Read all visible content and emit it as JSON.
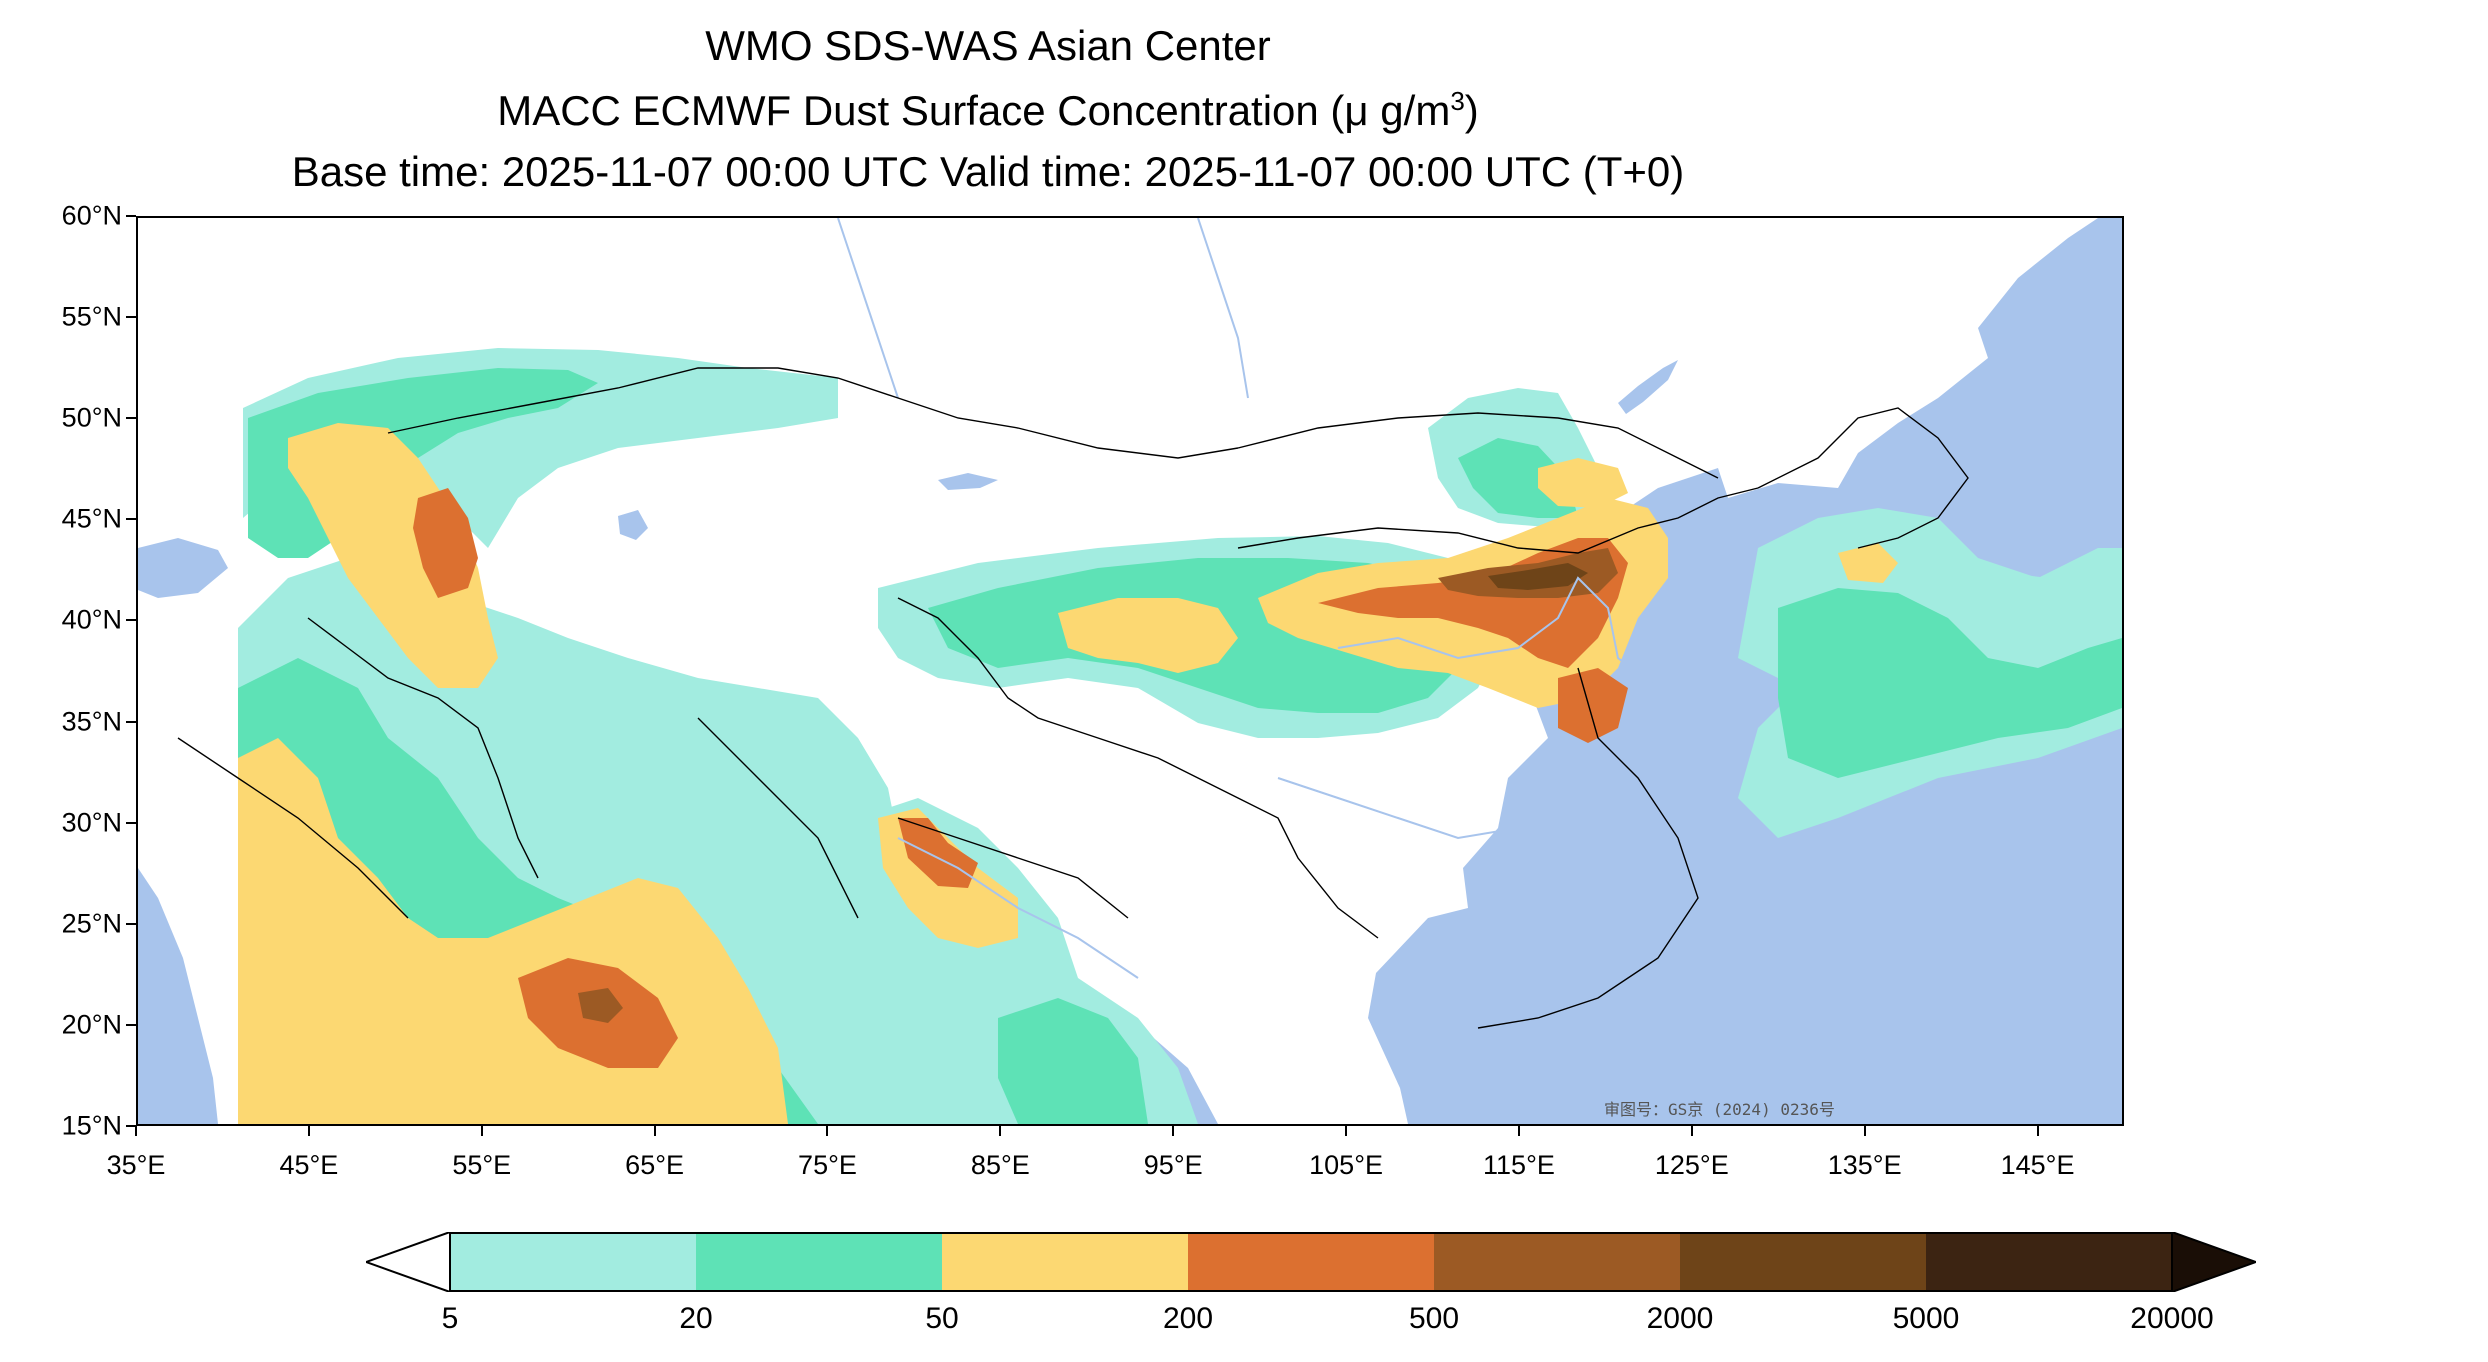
{
  "title": {
    "line1": "WMO SDS-WAS Asian Center",
    "line2_main": "MACC ECMWF Dust Surface Concentration (μ g/m",
    "line2_sup": "3",
    "line2_end": ")",
    "line3": "Base time: 2025-11-07 00:00 UTC Valid time: 2025-11-07 00:00 UTC (T+0)"
  },
  "map": {
    "lat_labels": [
      "60°N",
      "55°N",
      "50°N",
      "45°N",
      "40°N",
      "35°N",
      "30°N",
      "25°N",
      "20°N",
      "15°N"
    ],
    "lon_labels": [
      "35°E",
      "45°E",
      "55°E",
      "65°E",
      "75°E",
      "85°E",
      "95°E",
      "105°E",
      "115°E",
      "125°E",
      "135°E",
      "145°E"
    ],
    "extent": {
      "lon_min": 35,
      "lon_max": 150,
      "lat_min": 15,
      "lat_max": 60
    },
    "approval_text": "审图号：GS京 (2024) 0236号",
    "colors": {
      "ocean": "#a8c4ec",
      "land": "#ffffff",
      "river": "#a8c4ec",
      "border": "#000000"
    }
  },
  "colorbar": {
    "labels": [
      "5",
      "20",
      "50",
      "200",
      "500",
      "2000",
      "5000",
      "20000"
    ],
    "colors": [
      "#a2ece0",
      "#5ee2b6",
      "#fcd872",
      "#dc7030",
      "#9c5a24",
      "#6e4418",
      "#3c2412",
      "#1a0e06"
    ],
    "under_color": "#ffffff",
    "extend": "both"
  }
}
